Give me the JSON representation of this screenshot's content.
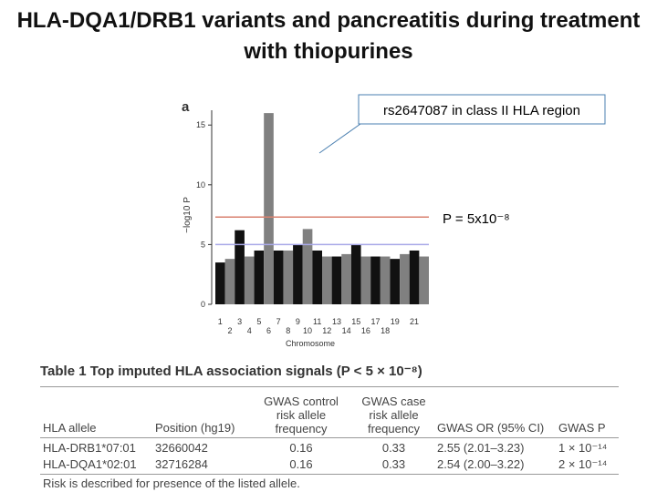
{
  "title": "HLA-DQA1/DRB1 variants and pancreatitis during treatment with thiopurines",
  "chart_data": {
    "type": "manhattan",
    "panel_label": "a",
    "y_label": "−log10 P",
    "x_label": "Chromosome",
    "callout": "rs2647087 in class II HLA region",
    "threshold_label": "P = 5x10⁻⁸",
    "categories": [
      "1",
      "2",
      "3",
      "4",
      "5",
      "6",
      "7",
      "8",
      "9",
      "10",
      "11",
      "12",
      "13",
      "14",
      "15",
      "16",
      "17",
      "18",
      "19",
      null,
      "21",
      null
    ],
    "values": [
      3.5,
      3.8,
      6.2,
      4,
      4.5,
      16,
      4.5,
      4.5,
      5,
      6.3,
      4.5,
      4,
      4,
      4.2,
      5,
      4,
      4,
      4,
      3.8,
      4.2,
      4.5,
      4
    ],
    "colors": [
      "#111111",
      "#808080"
    ],
    "thresholds": [
      {
        "value": 7.3,
        "color": "#d9826f"
      },
      {
        "value": 5,
        "color": "#a9a9e8"
      }
    ],
    "ylim": [
      0,
      17
    ],
    "yticks": [
      0,
      5,
      10,
      15
    ]
  },
  "table": {
    "title": "Table 1  Top imputed HLA association signals (P < 5 × 10⁻⁸)",
    "header": [
      "HLA allele",
      "Position (hg19)",
      "GWAS control risk allele frequency",
      "GWAS case risk allele frequency",
      "GWAS OR (95% CI)",
      "GWAS P"
    ],
    "rows": [
      [
        "HLA-DRB1*07:01",
        "32660042",
        "0.16",
        "0.33",
        "2.55 (2.01–3.23)",
        "1 × 10⁻¹⁴"
      ],
      [
        "HLA-DQA1*02:01",
        "32716284",
        "0.16",
        "0.33",
        "2.54 (2.00–3.22)",
        "2 × 10⁻¹⁴"
      ]
    ],
    "footnote": "Risk is described for presence of the listed allele."
  }
}
